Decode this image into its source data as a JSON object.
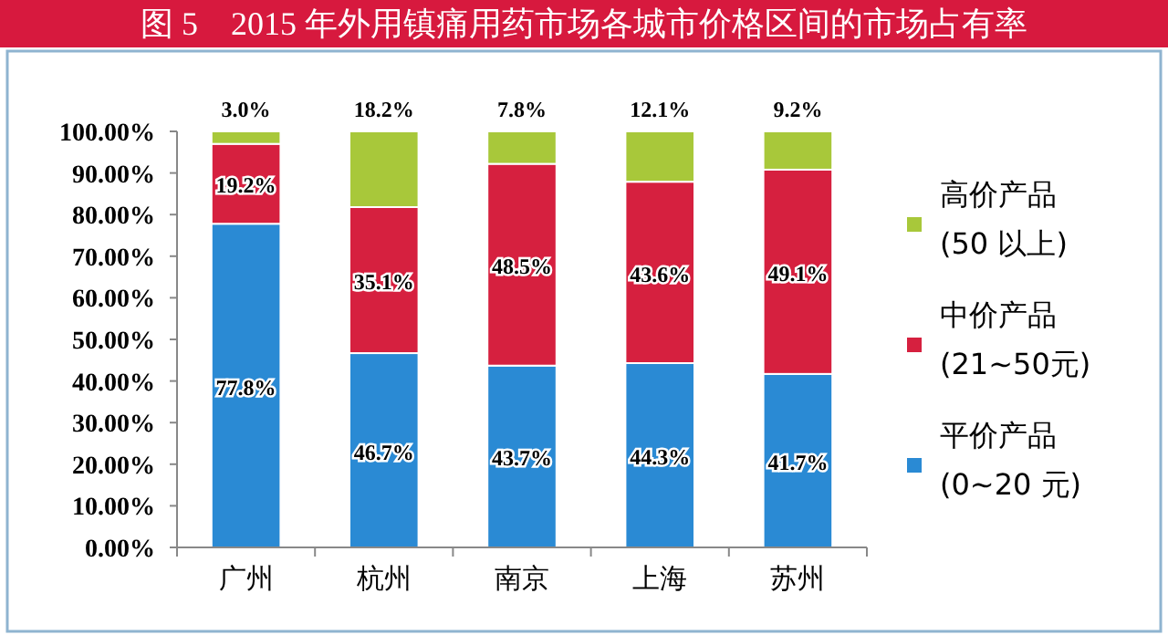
{
  "chart_data": {
    "type": "bar",
    "stacked": true,
    "title": "图 5    2015 年外用镇痛用药市场各城市价格区间的市场占有率",
    "categories": [
      "广州",
      "杭州",
      "南京",
      "上海",
      "苏州"
    ],
    "series": [
      {
        "name": "平价产品\n(0~20 元)",
        "color": "#2a8ad4",
        "values": [
          77.8,
          46.7,
          43.7,
          44.3,
          41.7
        ],
        "value_labels": [
          "77.8%",
          "46.7%",
          "43.7%",
          "44.3%",
          "41.7%"
        ]
      },
      {
        "name": "中价产品\n(21~50元)",
        "color": "#d6203f",
        "values": [
          19.2,
          35.1,
          48.5,
          43.6,
          49.1
        ],
        "value_labels": [
          "19.2%",
          "35.1%",
          "48.5%",
          "43.6%",
          "49.1%"
        ]
      },
      {
        "name": "高价产品\n(50 以上)",
        "color": "#a8c83a",
        "values": [
          3.0,
          18.2,
          7.8,
          12.1,
          9.2
        ],
        "value_labels": [
          "3.0%",
          "18.2%",
          "7.8%",
          "12.1%",
          "9.2%"
        ]
      }
    ],
    "ylim": [
      0,
      100
    ],
    "yticks": [
      {
        "value": 0,
        "label": "0.00%"
      },
      {
        "value": 10,
        "label": "10.00%"
      },
      {
        "value": 20,
        "label": "20.00%"
      },
      {
        "value": 30,
        "label": "30.00%"
      },
      {
        "value": 40,
        "label": "40.00%"
      },
      {
        "value": 50,
        "label": "50.00%"
      },
      {
        "value": 60,
        "label": "60.00%"
      },
      {
        "value": 70,
        "label": "70.00%"
      },
      {
        "value": 80,
        "label": "80.00%"
      },
      {
        "value": 90,
        "label": "90.00%"
      },
      {
        "value": 100,
        "label": "100.00%"
      }
    ],
    "grid": false,
    "legend": "right"
  }
}
